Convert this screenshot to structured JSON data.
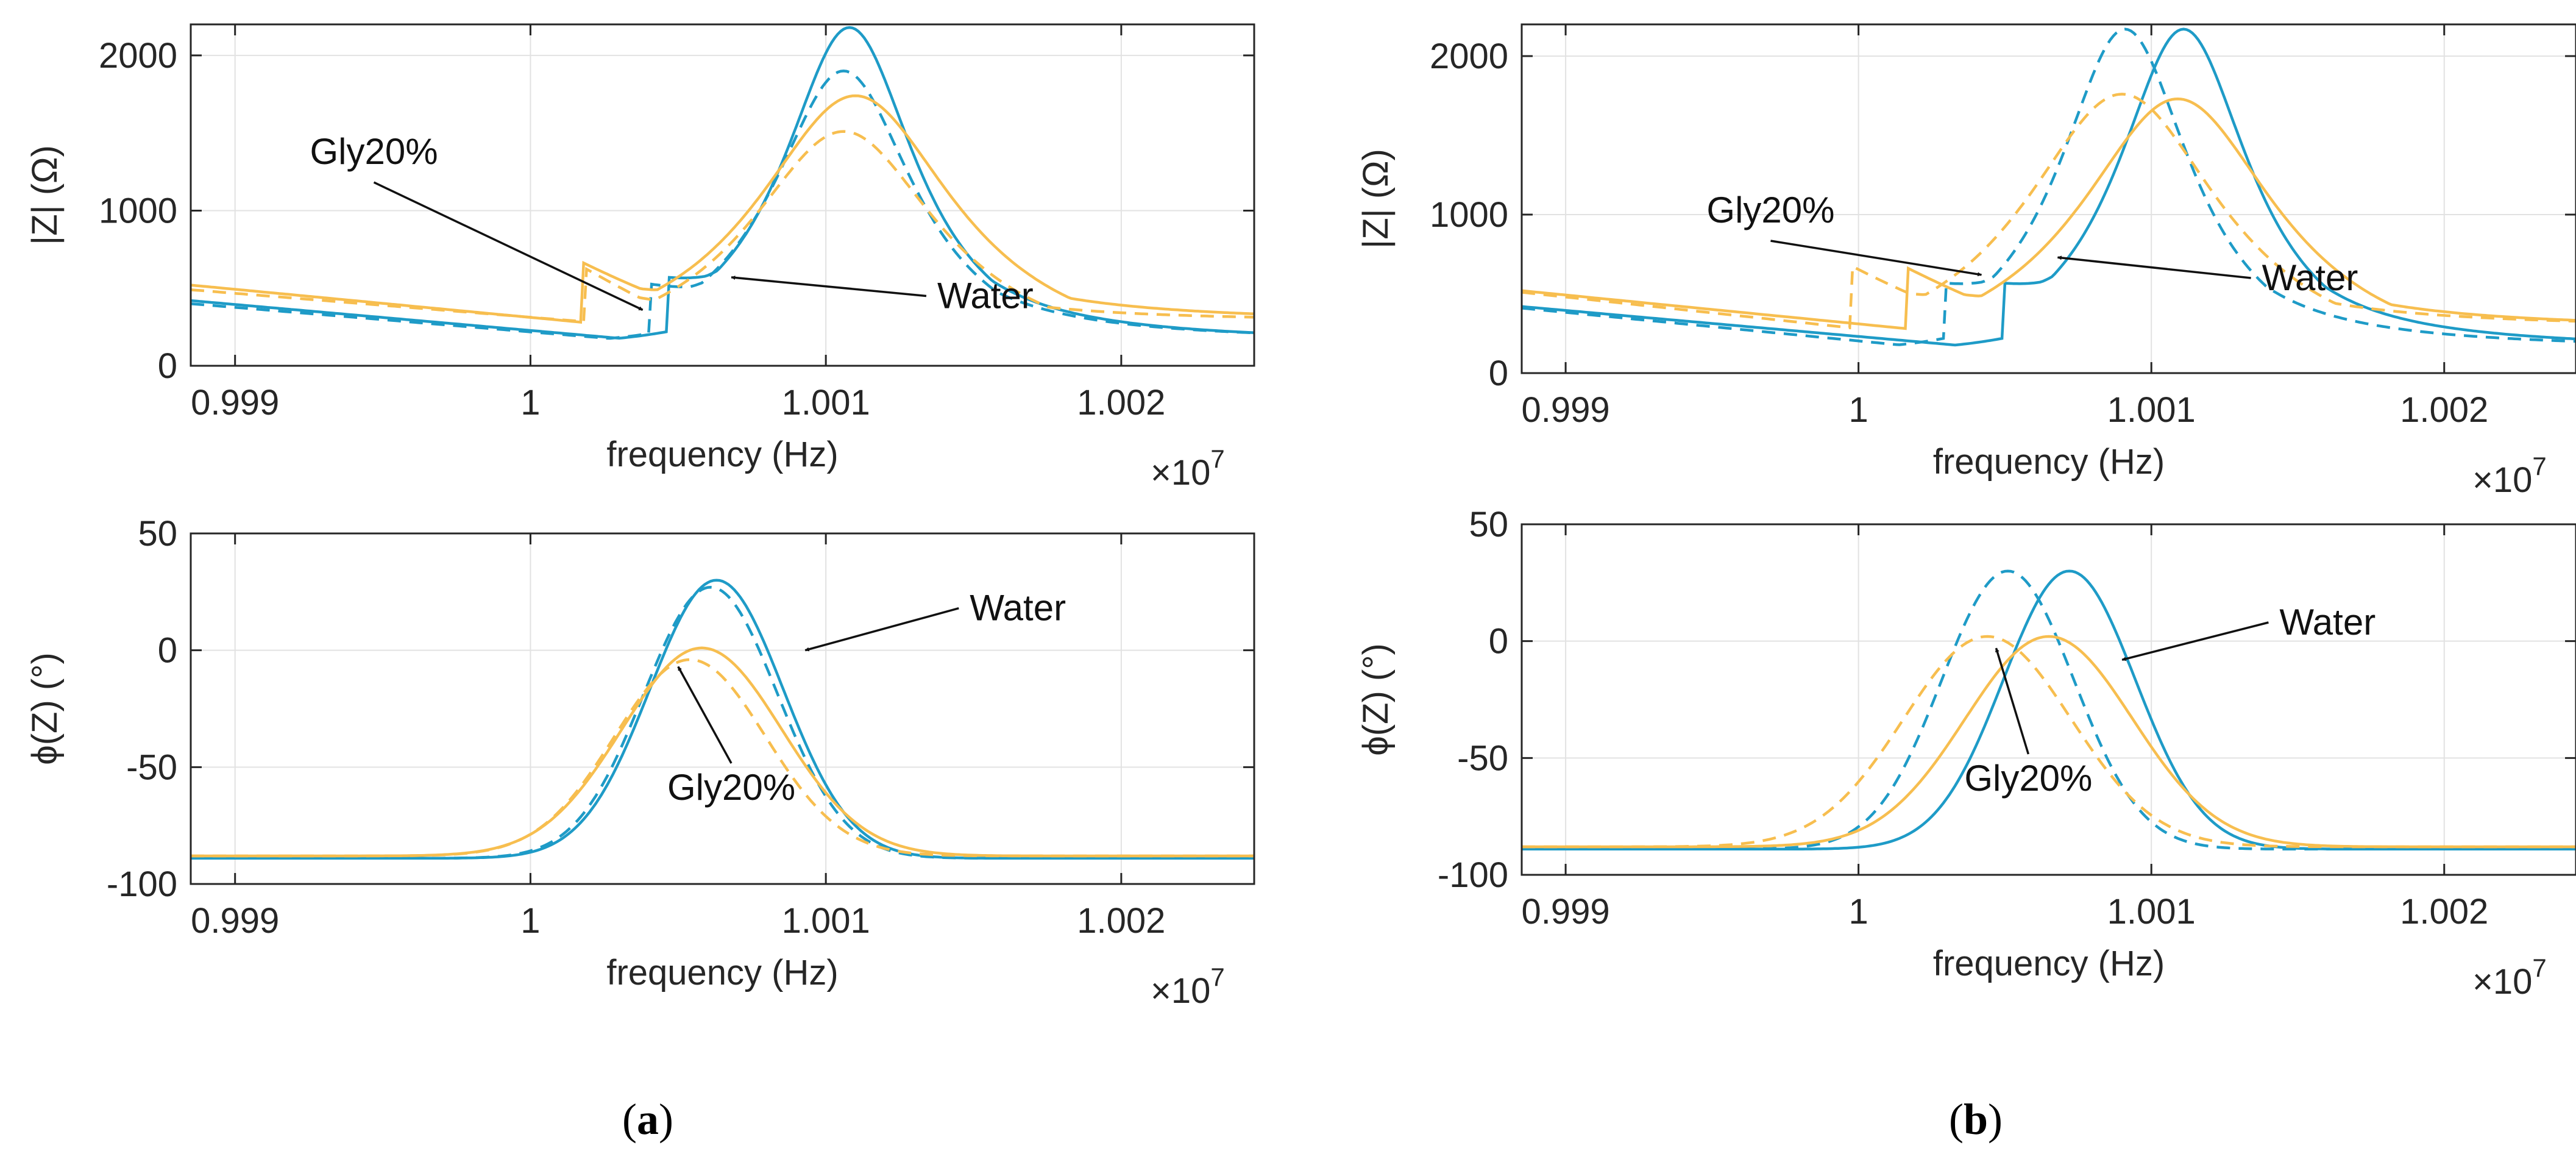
{
  "colors": {
    "water": "#1e9bc7",
    "gly20": "#f7be4f",
    "grid": "#e2e2e2",
    "axis": "#262626",
    "arrow": "#111111"
  },
  "captions": [
    "(a)",
    "(b)"
  ],
  "caption_letters": [
    "a",
    "b"
  ],
  "chart_data": [
    {
      "id": "a-mag",
      "type": "line",
      "xlabel": "frequency (Hz)",
      "ylabel": "|Z| (Ω)",
      "exponent": "×10^7",
      "xlim": [
        0.99885,
        1.00245
      ],
      "ylim": [
        0,
        2200
      ],
      "xticks": [
        0.999,
        1,
        1.001,
        1.002
      ],
      "xtick_labels": [
        "0.999",
        "1",
        "1.001",
        "1.002"
      ],
      "yticks": [
        0,
        1000,
        2000
      ],
      "ytick_labels": [
        "0",
        "1000",
        "2000"
      ],
      "series": [
        {
          "name": "Water",
          "style": "solid",
          "color": "water",
          "kind": "mag",
          "f0": 1.00108,
          "peak": 2180,
          "base": 420,
          "dip": 150,
          "width": 0.00028
        },
        {
          "name": "Water (dashed)",
          "style": "dashed",
          "color": "water",
          "kind": "mag",
          "f0": 1.00106,
          "peak": 1900,
          "base": 400,
          "dip": 155,
          "width": 0.0003
        },
        {
          "name": "Gly20%",
          "style": "solid",
          "color": "gly20",
          "kind": "mag",
          "f0": 1.0011,
          "peak": 1740,
          "base": 520,
          "dip": 280,
          "width": 0.00042
        },
        {
          "name": "Gly20% (dashed)",
          "style": "dashed",
          "color": "gly20",
          "kind": "mag",
          "f0": 1.00106,
          "peak": 1510,
          "base": 490,
          "dip": 285,
          "width": 0.0004
        }
      ],
      "annotations": [
        {
          "text": "Gly20%",
          "tx": 0.99947,
          "ty": 1300,
          "ax": 1.00038,
          "ay": 360,
          "tanchor": "middle"
        },
        {
          "text": "Water",
          "tx": 1.00134,
          "ty": 450,
          "ax": 1.00068,
          "ay": 570,
          "tanchor": "start"
        }
      ]
    },
    {
      "id": "a-phase",
      "type": "line",
      "xlabel": "frequency (Hz)",
      "ylabel": "ϕ(Z) (°)",
      "exponent": "×10^7",
      "xlim": [
        0.99885,
        1.00245
      ],
      "ylim": [
        -100,
        50
      ],
      "xticks": [
        0.999,
        1,
        1.001,
        1.002
      ],
      "xtick_labels": [
        "0.999",
        "1",
        "1.001",
        "1.002"
      ],
      "yticks": [
        -100,
        -50,
        0,
        50
      ],
      "ytick_labels": [
        "-100",
        "-50",
        "0",
        "50"
      ],
      "series": [
        {
          "name": "Water",
          "style": "solid",
          "color": "water",
          "kind": "phase",
          "f0": 1.00063,
          "peak": 30,
          "base": -89,
          "width": 0.0003
        },
        {
          "name": "Water (dashed)",
          "style": "dashed",
          "color": "water",
          "kind": "phase",
          "f0": 1.00061,
          "peak": 27,
          "base": -89,
          "width": 0.0003
        },
        {
          "name": "Gly20%",
          "style": "solid",
          "color": "gly20",
          "kind": "phase",
          "f0": 1.00058,
          "peak": 1,
          "base": -88,
          "width": 0.00036
        },
        {
          "name": "Gly20% (dashed)",
          "style": "dashed",
          "color": "gly20",
          "kind": "phase",
          "f0": 1.00054,
          "peak": -4,
          "base": -88,
          "width": 0.00034
        }
      ],
      "annotations": [
        {
          "text": "Water",
          "tx": 1.00145,
          "ty": 18,
          "ax": 1.00093,
          "ay": 0,
          "tanchor": "start"
        },
        {
          "text": "Gly20%",
          "tx": 1.00068,
          "ty": -64,
          "ax": 1.0005,
          "ay": -7,
          "tanchor": "middle"
        }
      ]
    },
    {
      "id": "b-mag",
      "type": "line",
      "xlabel": "frequency (Hz)",
      "ylabel": "|Z| (Ω)",
      "exponent": "×10^7",
      "xlim": [
        0.99885,
        1.00245
      ],
      "ylim": [
        0,
        2200
      ],
      "xticks": [
        0.999,
        1,
        1.001,
        1.002
      ],
      "xtick_labels": [
        "0.999",
        "1",
        "1.001",
        "1.002"
      ],
      "yticks": [
        0,
        1000,
        2000
      ],
      "ytick_labels": [
        "0",
        "1000",
        "2000"
      ],
      "series": [
        {
          "name": "Water",
          "style": "solid",
          "color": "water",
          "kind": "mag",
          "f0": 1.00111,
          "peak": 2170,
          "base": 420,
          "dip": 150,
          "width": 0.00028
        },
        {
          "name": "Water (dashed)",
          "style": "dashed",
          "color": "water",
          "kind": "mag",
          "f0": 1.00091,
          "peak": 2170,
          "base": 410,
          "dip": 150,
          "width": 0.00028
        },
        {
          "name": "Gly20%",
          "style": "solid",
          "color": "gly20",
          "kind": "mag",
          "f0": 1.00109,
          "peak": 1730,
          "base": 520,
          "dip": 280,
          "width": 0.00042
        },
        {
          "name": "Gly20% (dashed)",
          "style": "dashed",
          "color": "gly20",
          "kind": "mag",
          "f0": 1.0009,
          "peak": 1760,
          "base": 510,
          "dip": 285,
          "width": 0.00042
        }
      ],
      "annotations": [
        {
          "text": "Gly20%",
          "tx": 0.9997,
          "ty": 950,
          "ax": 1.00042,
          "ay": 620,
          "tanchor": "middle"
        },
        {
          "text": "Water",
          "tx": 1.00134,
          "ty": 600,
          "ax": 1.00068,
          "ay": 730,
          "tanchor": "start"
        }
      ]
    },
    {
      "id": "b-phase",
      "type": "line",
      "xlabel": "frequency (Hz)",
      "ylabel": "ϕ(Z) (°)",
      "exponent": "×10^7",
      "xlim": [
        0.99885,
        1.00245
      ],
      "ylim": [
        -100,
        50
      ],
      "xticks": [
        0.999,
        1,
        1.001,
        1.002
      ],
      "xtick_labels": [
        "0.999",
        "1",
        "1.001",
        "1.002"
      ],
      "yticks": [
        -100,
        -50,
        0,
        50
      ],
      "ytick_labels": [
        "-100",
        "-50",
        "0",
        "50"
      ],
      "series": [
        {
          "name": "Water",
          "style": "solid",
          "color": "water",
          "kind": "phase",
          "f0": 1.00072,
          "peak": 30,
          "base": -89,
          "width": 0.0003
        },
        {
          "name": "Water (dashed)",
          "style": "dashed",
          "color": "water",
          "kind": "phase",
          "f0": 1.00051,
          "peak": 30,
          "base": -89,
          "width": 0.0003
        },
        {
          "name": "Gly20%",
          "style": "solid",
          "color": "gly20",
          "kind": "phase",
          "f0": 1.00065,
          "peak": 2,
          "base": -88,
          "width": 0.00038
        },
        {
          "name": "Gly20% (dashed)",
          "style": "dashed",
          "color": "gly20",
          "kind": "phase",
          "f0": 1.00044,
          "peak": 2,
          "base": -88,
          "width": 0.00038
        }
      ],
      "annotations": [
        {
          "text": "Water",
          "tx": 1.0014,
          "ty": 8,
          "ax": 1.0009,
          "ay": -8,
          "tanchor": "start"
        },
        {
          "text": "Gly20%",
          "tx": 1.00058,
          "ty": -64,
          "ax": 1.00047,
          "ay": -3,
          "tanchor": "middle"
        }
      ]
    }
  ]
}
